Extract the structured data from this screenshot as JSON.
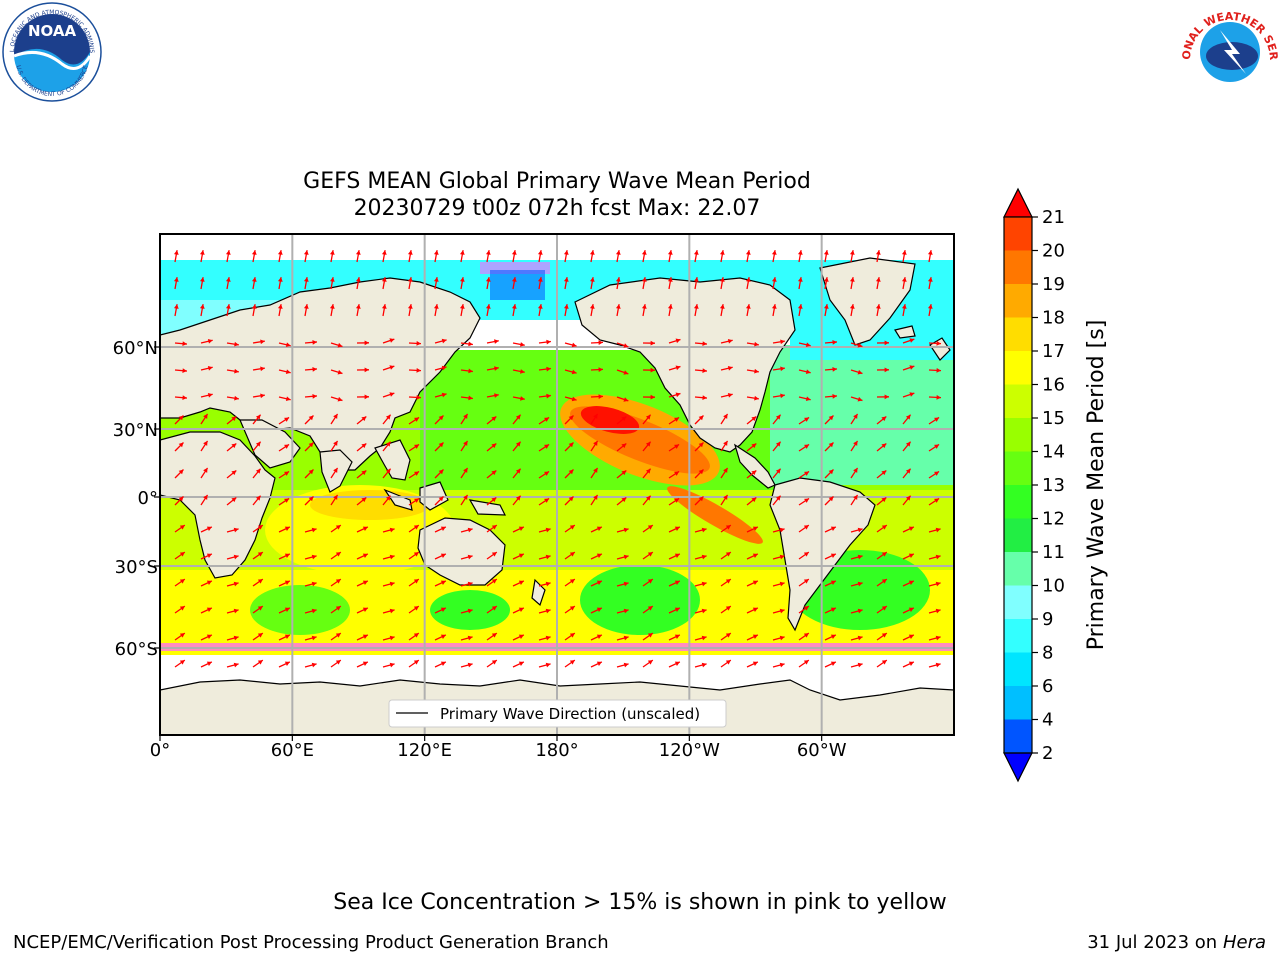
{
  "logos": {
    "noaa_text": "NOAA",
    "noaa_ring_text": "NATIONAL OCEANIC AND ATMOSPHERIC ADMINISTRATION",
    "noaa_ring_bottom": "U.S. DEPARTMENT OF COMMERCE",
    "nws_ring_text": "NATIONAL WEATHER SERVICE"
  },
  "title": {
    "line1": "GEFS MEAN Global Primary Wave Mean Period",
    "line2": "20230729 t00z 072h fcst   Max: 22.07"
  },
  "map": {
    "lon_ticks": [
      "0°",
      "60°E",
      "120°E",
      "180°",
      "120°W",
      "60°W"
    ],
    "lat_ticks": [
      "60°N",
      "30°N",
      "0°",
      "30°S",
      "60°S"
    ],
    "legend_label": "Primary Wave Direction (unscaled)",
    "arrow_color": "#ff0000",
    "land_color": "#efecdc",
    "grid_color": "#b0b0b0"
  },
  "colorbar": {
    "label": "Primary Wave Mean Period [s]",
    "ticks": [
      "2",
      "4",
      "6",
      "8",
      "9",
      "10",
      "11",
      "12",
      "13",
      "14",
      "15",
      "16",
      "17",
      "18",
      "19",
      "20",
      "21"
    ],
    "colors": [
      "#0055ff",
      "#00bfff",
      "#00e5ff",
      "#33ffff",
      "#80ffff",
      "#66ffaa",
      "#22ee44",
      "#33ff22",
      "#66ff11",
      "#99ff00",
      "#ccff00",
      "#ffff00",
      "#ffdd00",
      "#ffaa00",
      "#ff7700",
      "#ff4400",
      "#ff1100"
    ],
    "under_color": "#0000ff",
    "over_color": "#ff0000"
  },
  "chart_data": {
    "type": "heatmap",
    "title": "GEFS MEAN Global Primary Wave Mean Period",
    "subtitle": "20230729 t00z 072h fcst   Max: 22.07",
    "max_value": 22.07,
    "units": "s",
    "colorbar_label": "Primary Wave Mean Period [s]",
    "levels": [
      2,
      4,
      6,
      8,
      9,
      10,
      11,
      12,
      13,
      14,
      15,
      16,
      17,
      18,
      19,
      20,
      21
    ],
    "x_ticks": [
      "0°",
      "60°E",
      "120°E",
      "180°",
      "120°W",
      "60°W"
    ],
    "y_ticks": [
      "60°N",
      "30°N",
      "0°",
      "30°S",
      "60°S"
    ],
    "legend": "Primary Wave Direction (unscaled)",
    "grid": true
  },
  "footer": {
    "note": "Sea Ice Concentration > 15% is shown in pink to yellow",
    "left": "NCEP/EMC/Verification Post Processing Product Generation Branch",
    "right_date": "31 Jul 2023 on ",
    "right_host": "Hera"
  }
}
